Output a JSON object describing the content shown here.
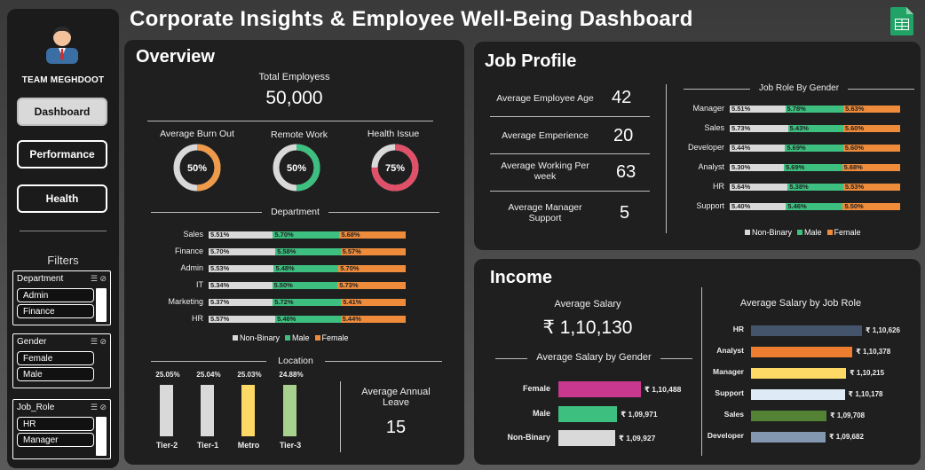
{
  "title": "Corporate Insights & Employee Well-Being Dashboard",
  "sidebar": {
    "team": "TEAM MEGHDOOT",
    "nav": [
      {
        "label": "Dashboard",
        "active": true
      },
      {
        "label": "Performance",
        "active": false
      },
      {
        "label": "Health",
        "active": false
      }
    ],
    "filters_label": "Filters",
    "slicers": [
      {
        "title": "Department",
        "items": [
          "Admin",
          "Finance"
        ]
      },
      {
        "title": "Gender",
        "items": [
          "Female",
          "Male"
        ]
      },
      {
        "title": "Job_Role",
        "items": [
          "HR",
          "Manager"
        ]
      }
    ]
  },
  "overview": {
    "title": "Overview",
    "total_label": "Total Employess",
    "total_value": "50,000",
    "donuts": [
      {
        "label": "Average Burn Out",
        "value": "50%",
        "pct": 0.5,
        "color": "#ef9a4a"
      },
      {
        "label": "Remote Work",
        "value": "50%",
        "pct": 0.5,
        "color": "#3dbf80"
      },
      {
        "label": "Health Issue",
        "value": "75%",
        "pct": 0.75,
        "color": "#e05068"
      }
    ],
    "department_title": "Department",
    "departments": [
      {
        "name": "Sales",
        "nb": "5.51%",
        "ml": "5.70%",
        "fm": "5.68%"
      },
      {
        "name": "Finance",
        "nb": "5.70%",
        "ml": "5.58%",
        "fm": "5.57%"
      },
      {
        "name": "Admin",
        "nb": "5.53%",
        "ml": "5.48%",
        "fm": "5.70%"
      },
      {
        "name": "IT",
        "nb": "5.34%",
        "ml": "5.50%",
        "fm": "5.73%"
      },
      {
        "name": "Marketing",
        "nb": "5.37%",
        "ml": "5.72%",
        "fm": "5.41%"
      },
      {
        "name": "HR",
        "nb": "5.57%",
        "ml": "5.46%",
        "fm": "5.44%"
      }
    ],
    "legend": [
      "Non-Binary",
      "Male",
      "Female"
    ],
    "location_title": "Location",
    "locations": [
      {
        "name": "Tier-2",
        "value": "25.05%",
        "num": 25.05,
        "color": "#d9d9d9"
      },
      {
        "name": "Tier-1",
        "value": "25.04%",
        "num": 25.04,
        "color": "#d9d9d9"
      },
      {
        "name": "Metro",
        "value": "25.03%",
        "num": 25.03,
        "color": "#ffd966"
      },
      {
        "name": "Tier-3",
        "value": "24.88%",
        "num": 24.88,
        "color": "#a9d18e"
      }
    ],
    "annual_leave_label": "Average Annual Leave",
    "annual_leave_value": "15"
  },
  "job": {
    "title": "Job Profile",
    "kpis": [
      {
        "label": "Average Employee Age",
        "value": "42"
      },
      {
        "label": "Average Emperience",
        "value": "20"
      },
      {
        "label": "Average Working Per week",
        "value": "63"
      },
      {
        "label": "Average Manager Support",
        "value": "5"
      }
    ],
    "role_title": "Job Role By Gender",
    "roles": [
      {
        "name": "Manager",
        "nb": "5.51%",
        "ml": "5.78%",
        "fm": "5.63%"
      },
      {
        "name": "Sales",
        "nb": "5.73%",
        "ml": "5.43%",
        "fm": "5.60%"
      },
      {
        "name": "Developer",
        "nb": "5.44%",
        "ml": "5.69%",
        "fm": "5.60%"
      },
      {
        "name": "Analyst",
        "nb": "5.30%",
        "ml": "5.69%",
        "fm": "5.68%"
      },
      {
        "name": "HR",
        "nb": "5.64%",
        "ml": "5.38%",
        "fm": "5.53%"
      },
      {
        "name": "Support",
        "nb": "5.40%",
        "ml": "5.46%",
        "fm": "5.50%"
      }
    ],
    "legend": [
      "Non-Binary",
      "Male",
      "Female"
    ]
  },
  "income": {
    "title": "Income",
    "avg_label": "Average Salary",
    "avg_value": "₹ 1,10,130",
    "gender_title": "Average Salary by Gender",
    "genders": [
      {
        "name": "Female",
        "value": "₹ 1,10,488",
        "num": 110488,
        "color": "#c9388f"
      },
      {
        "name": "Male",
        "value": "₹ 1,09,971",
        "num": 109971,
        "color": "#3dbf80"
      },
      {
        "name": "Non-Binary",
        "value": "₹ 1,09,927",
        "num": 109927,
        "color": "#d9d9d9"
      }
    ],
    "role_title": "Average Salary by Job Role",
    "roles": [
      {
        "name": "HR",
        "value": "₹ 1,10,626",
        "num": 110626,
        "color": "#44546a"
      },
      {
        "name": "Analyst",
        "value": "₹ 1,10,378",
        "num": 110378,
        "color": "#ed7d31"
      },
      {
        "name": "Manager",
        "value": "₹ 1,10,215",
        "num": 110215,
        "color": "#ffd966"
      },
      {
        "name": "Support",
        "value": "₹ 1,10,178",
        "num": 110178,
        "color": "#deebf7"
      },
      {
        "name": "Sales",
        "value": "₹ 1,09,708",
        "num": 109708,
        "color": "#548235"
      },
      {
        "name": "Developer",
        "value": "₹ 1,09,682",
        "num": 109682,
        "color": "#8497b0"
      }
    ]
  }
}
